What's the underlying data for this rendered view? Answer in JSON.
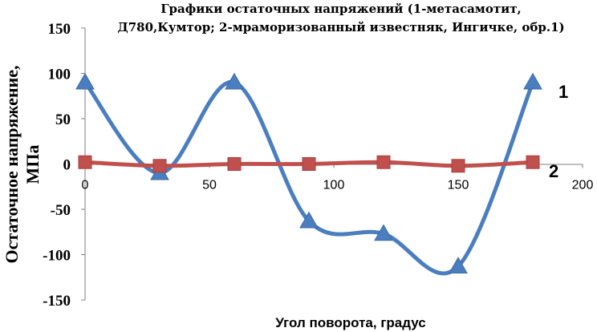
{
  "chart_data": {
    "type": "line",
    "title_lines": [
      "Графики  остаточных напряжений (1-метасамотит,",
      "Д780,Кумтор; 2-мраморизованный известняк, Ингичке, обр.1)"
    ],
    "xlabel": "Угол поворота, градус",
    "ylabel_lines": [
      "Остаточное напряжение,",
      "МПа"
    ],
    "xlim": [
      0,
      200
    ],
    "ylim": [
      -150,
      150
    ],
    "xticks": [
      0,
      50,
      100,
      150,
      200
    ],
    "yticks": [
      150,
      100,
      50,
      0,
      -50,
      -100,
      -150
    ],
    "x_tick_labels": [
      "0",
      "50",
      "100",
      "150",
      "200"
    ],
    "y_tick_labels": [
      "150",
      "100",
      "50",
      "0",
      "-50",
      "-100",
      "-150"
    ],
    "smooth": true,
    "grid": false,
    "series": [
      {
        "name": "1",
        "color": "#4a7ebf",
        "marker": "triangle",
        "x": [
          0,
          30,
          60,
          90,
          120,
          150,
          180
        ],
        "y": [
          90,
          -10,
          90,
          -63,
          -77,
          -113,
          90
        ]
      },
      {
        "name": "2",
        "color": "#c0504d",
        "marker": "square",
        "x": [
          0,
          30,
          60,
          90,
          120,
          150,
          180
        ],
        "y": [
          2,
          -2,
          0,
          0,
          2,
          -2,
          2
        ]
      }
    ]
  }
}
